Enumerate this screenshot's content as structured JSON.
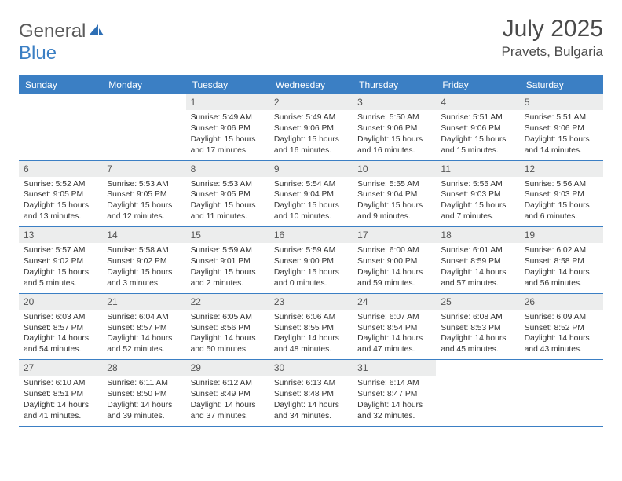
{
  "logo": {
    "text1": "General",
    "text2": "Blue"
  },
  "title": "July 2025",
  "location": "Pravets, Bulgaria",
  "colors": {
    "header_bg": "#3b7fc4",
    "daynum_bg": "#eceded",
    "border": "#3b7fc4",
    "text": "#333333",
    "title_color": "#4a4a4a"
  },
  "day_headers": [
    "Sunday",
    "Monday",
    "Tuesday",
    "Wednesday",
    "Thursday",
    "Friday",
    "Saturday"
  ],
  "weeks": [
    [
      null,
      null,
      {
        "n": "1",
        "sr": "5:49 AM",
        "ss": "9:06 PM",
        "dl": "15 hours and 17 minutes."
      },
      {
        "n": "2",
        "sr": "5:49 AM",
        "ss": "9:06 PM",
        "dl": "15 hours and 16 minutes."
      },
      {
        "n": "3",
        "sr": "5:50 AM",
        "ss": "9:06 PM",
        "dl": "15 hours and 16 minutes."
      },
      {
        "n": "4",
        "sr": "5:51 AM",
        "ss": "9:06 PM",
        "dl": "15 hours and 15 minutes."
      },
      {
        "n": "5",
        "sr": "5:51 AM",
        "ss": "9:06 PM",
        "dl": "15 hours and 14 minutes."
      }
    ],
    [
      {
        "n": "6",
        "sr": "5:52 AM",
        "ss": "9:05 PM",
        "dl": "15 hours and 13 minutes."
      },
      {
        "n": "7",
        "sr": "5:53 AM",
        "ss": "9:05 PM",
        "dl": "15 hours and 12 minutes."
      },
      {
        "n": "8",
        "sr": "5:53 AM",
        "ss": "9:05 PM",
        "dl": "15 hours and 11 minutes."
      },
      {
        "n": "9",
        "sr": "5:54 AM",
        "ss": "9:04 PM",
        "dl": "15 hours and 10 minutes."
      },
      {
        "n": "10",
        "sr": "5:55 AM",
        "ss": "9:04 PM",
        "dl": "15 hours and 9 minutes."
      },
      {
        "n": "11",
        "sr": "5:55 AM",
        "ss": "9:03 PM",
        "dl": "15 hours and 7 minutes."
      },
      {
        "n": "12",
        "sr": "5:56 AM",
        "ss": "9:03 PM",
        "dl": "15 hours and 6 minutes."
      }
    ],
    [
      {
        "n": "13",
        "sr": "5:57 AM",
        "ss": "9:02 PM",
        "dl": "15 hours and 5 minutes."
      },
      {
        "n": "14",
        "sr": "5:58 AM",
        "ss": "9:02 PM",
        "dl": "15 hours and 3 minutes."
      },
      {
        "n": "15",
        "sr": "5:59 AM",
        "ss": "9:01 PM",
        "dl": "15 hours and 2 minutes."
      },
      {
        "n": "16",
        "sr": "5:59 AM",
        "ss": "9:00 PM",
        "dl": "15 hours and 0 minutes."
      },
      {
        "n": "17",
        "sr": "6:00 AM",
        "ss": "9:00 PM",
        "dl": "14 hours and 59 minutes."
      },
      {
        "n": "18",
        "sr": "6:01 AM",
        "ss": "8:59 PM",
        "dl": "14 hours and 57 minutes."
      },
      {
        "n": "19",
        "sr": "6:02 AM",
        "ss": "8:58 PM",
        "dl": "14 hours and 56 minutes."
      }
    ],
    [
      {
        "n": "20",
        "sr": "6:03 AM",
        "ss": "8:57 PM",
        "dl": "14 hours and 54 minutes."
      },
      {
        "n": "21",
        "sr": "6:04 AM",
        "ss": "8:57 PM",
        "dl": "14 hours and 52 minutes."
      },
      {
        "n": "22",
        "sr": "6:05 AM",
        "ss": "8:56 PM",
        "dl": "14 hours and 50 minutes."
      },
      {
        "n": "23",
        "sr": "6:06 AM",
        "ss": "8:55 PM",
        "dl": "14 hours and 48 minutes."
      },
      {
        "n": "24",
        "sr": "6:07 AM",
        "ss": "8:54 PM",
        "dl": "14 hours and 47 minutes."
      },
      {
        "n": "25",
        "sr": "6:08 AM",
        "ss": "8:53 PM",
        "dl": "14 hours and 45 minutes."
      },
      {
        "n": "26",
        "sr": "6:09 AM",
        "ss": "8:52 PM",
        "dl": "14 hours and 43 minutes."
      }
    ],
    [
      {
        "n": "27",
        "sr": "6:10 AM",
        "ss": "8:51 PM",
        "dl": "14 hours and 41 minutes."
      },
      {
        "n": "28",
        "sr": "6:11 AM",
        "ss": "8:50 PM",
        "dl": "14 hours and 39 minutes."
      },
      {
        "n": "29",
        "sr": "6:12 AM",
        "ss": "8:49 PM",
        "dl": "14 hours and 37 minutes."
      },
      {
        "n": "30",
        "sr": "6:13 AM",
        "ss": "8:48 PM",
        "dl": "14 hours and 34 minutes."
      },
      {
        "n": "31",
        "sr": "6:14 AM",
        "ss": "8:47 PM",
        "dl": "14 hours and 32 minutes."
      },
      null,
      null
    ]
  ],
  "labels": {
    "sunrise": "Sunrise:",
    "sunset": "Sunset:",
    "daylight": "Daylight:"
  }
}
